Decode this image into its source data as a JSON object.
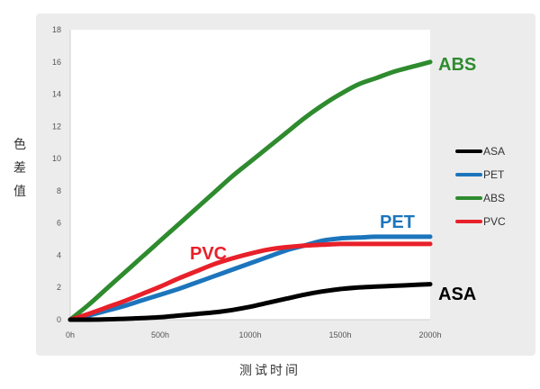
{
  "chart_data": {
    "type": "line",
    "xlabel": "测试时间",
    "ylabel_chars": [
      "色",
      "差",
      "值"
    ],
    "x": [
      0,
      100,
      200,
      300,
      400,
      500,
      600,
      700,
      800,
      900,
      1000,
      1100,
      1200,
      1300,
      1400,
      1500,
      1600,
      1700,
      1800,
      1900,
      2000
    ],
    "x_ticks": [
      0,
      500,
      1000,
      1500,
      2000
    ],
    "x_tick_labels": [
      "0h",
      "500h",
      "1000h",
      "1500h",
      "2000h"
    ],
    "xlim": [
      0,
      2000
    ],
    "y_ticks": [
      0,
      2,
      4,
      6,
      8,
      10,
      12,
      14,
      16,
      18
    ],
    "ylim": [
      0,
      18
    ],
    "legend_position": "right",
    "series": [
      {
        "name": "ASA",
        "color": "#000000",
        "end_label": "ASA",
        "values": [
          0,
          0.0,
          0.02,
          0.05,
          0.1,
          0.15,
          0.25,
          0.35,
          0.45,
          0.6,
          0.8,
          1.05,
          1.3,
          1.55,
          1.75,
          1.9,
          2.0,
          2.05,
          2.1,
          2.15,
          2.2
        ]
      },
      {
        "name": "PET",
        "color": "#1c75bc",
        "end_label": "PET",
        "values": [
          0,
          0.25,
          0.55,
          0.85,
          1.2,
          1.55,
          1.9,
          2.3,
          2.7,
          3.1,
          3.5,
          3.9,
          4.3,
          4.6,
          4.9,
          5.05,
          5.1,
          5.15,
          5.15,
          5.15,
          5.15
        ]
      },
      {
        "name": "ABS",
        "color": "#2e8b2e",
        "end_label": "ABS",
        "values": [
          0,
          0.9,
          1.9,
          2.9,
          3.9,
          4.9,
          5.9,
          6.9,
          7.9,
          8.9,
          9.8,
          10.7,
          11.6,
          12.5,
          13.3,
          14.0,
          14.6,
          15.0,
          15.4,
          15.7,
          16.0
        ]
      },
      {
        "name": "PVC",
        "color": "#e8202a",
        "end_label": "PVC",
        "values": [
          0,
          0.35,
          0.75,
          1.15,
          1.6,
          2.05,
          2.55,
          3.0,
          3.45,
          3.8,
          4.1,
          4.35,
          4.5,
          4.6,
          4.65,
          4.7,
          4.7,
          4.7,
          4.7,
          4.7,
          4.7
        ]
      }
    ]
  }
}
